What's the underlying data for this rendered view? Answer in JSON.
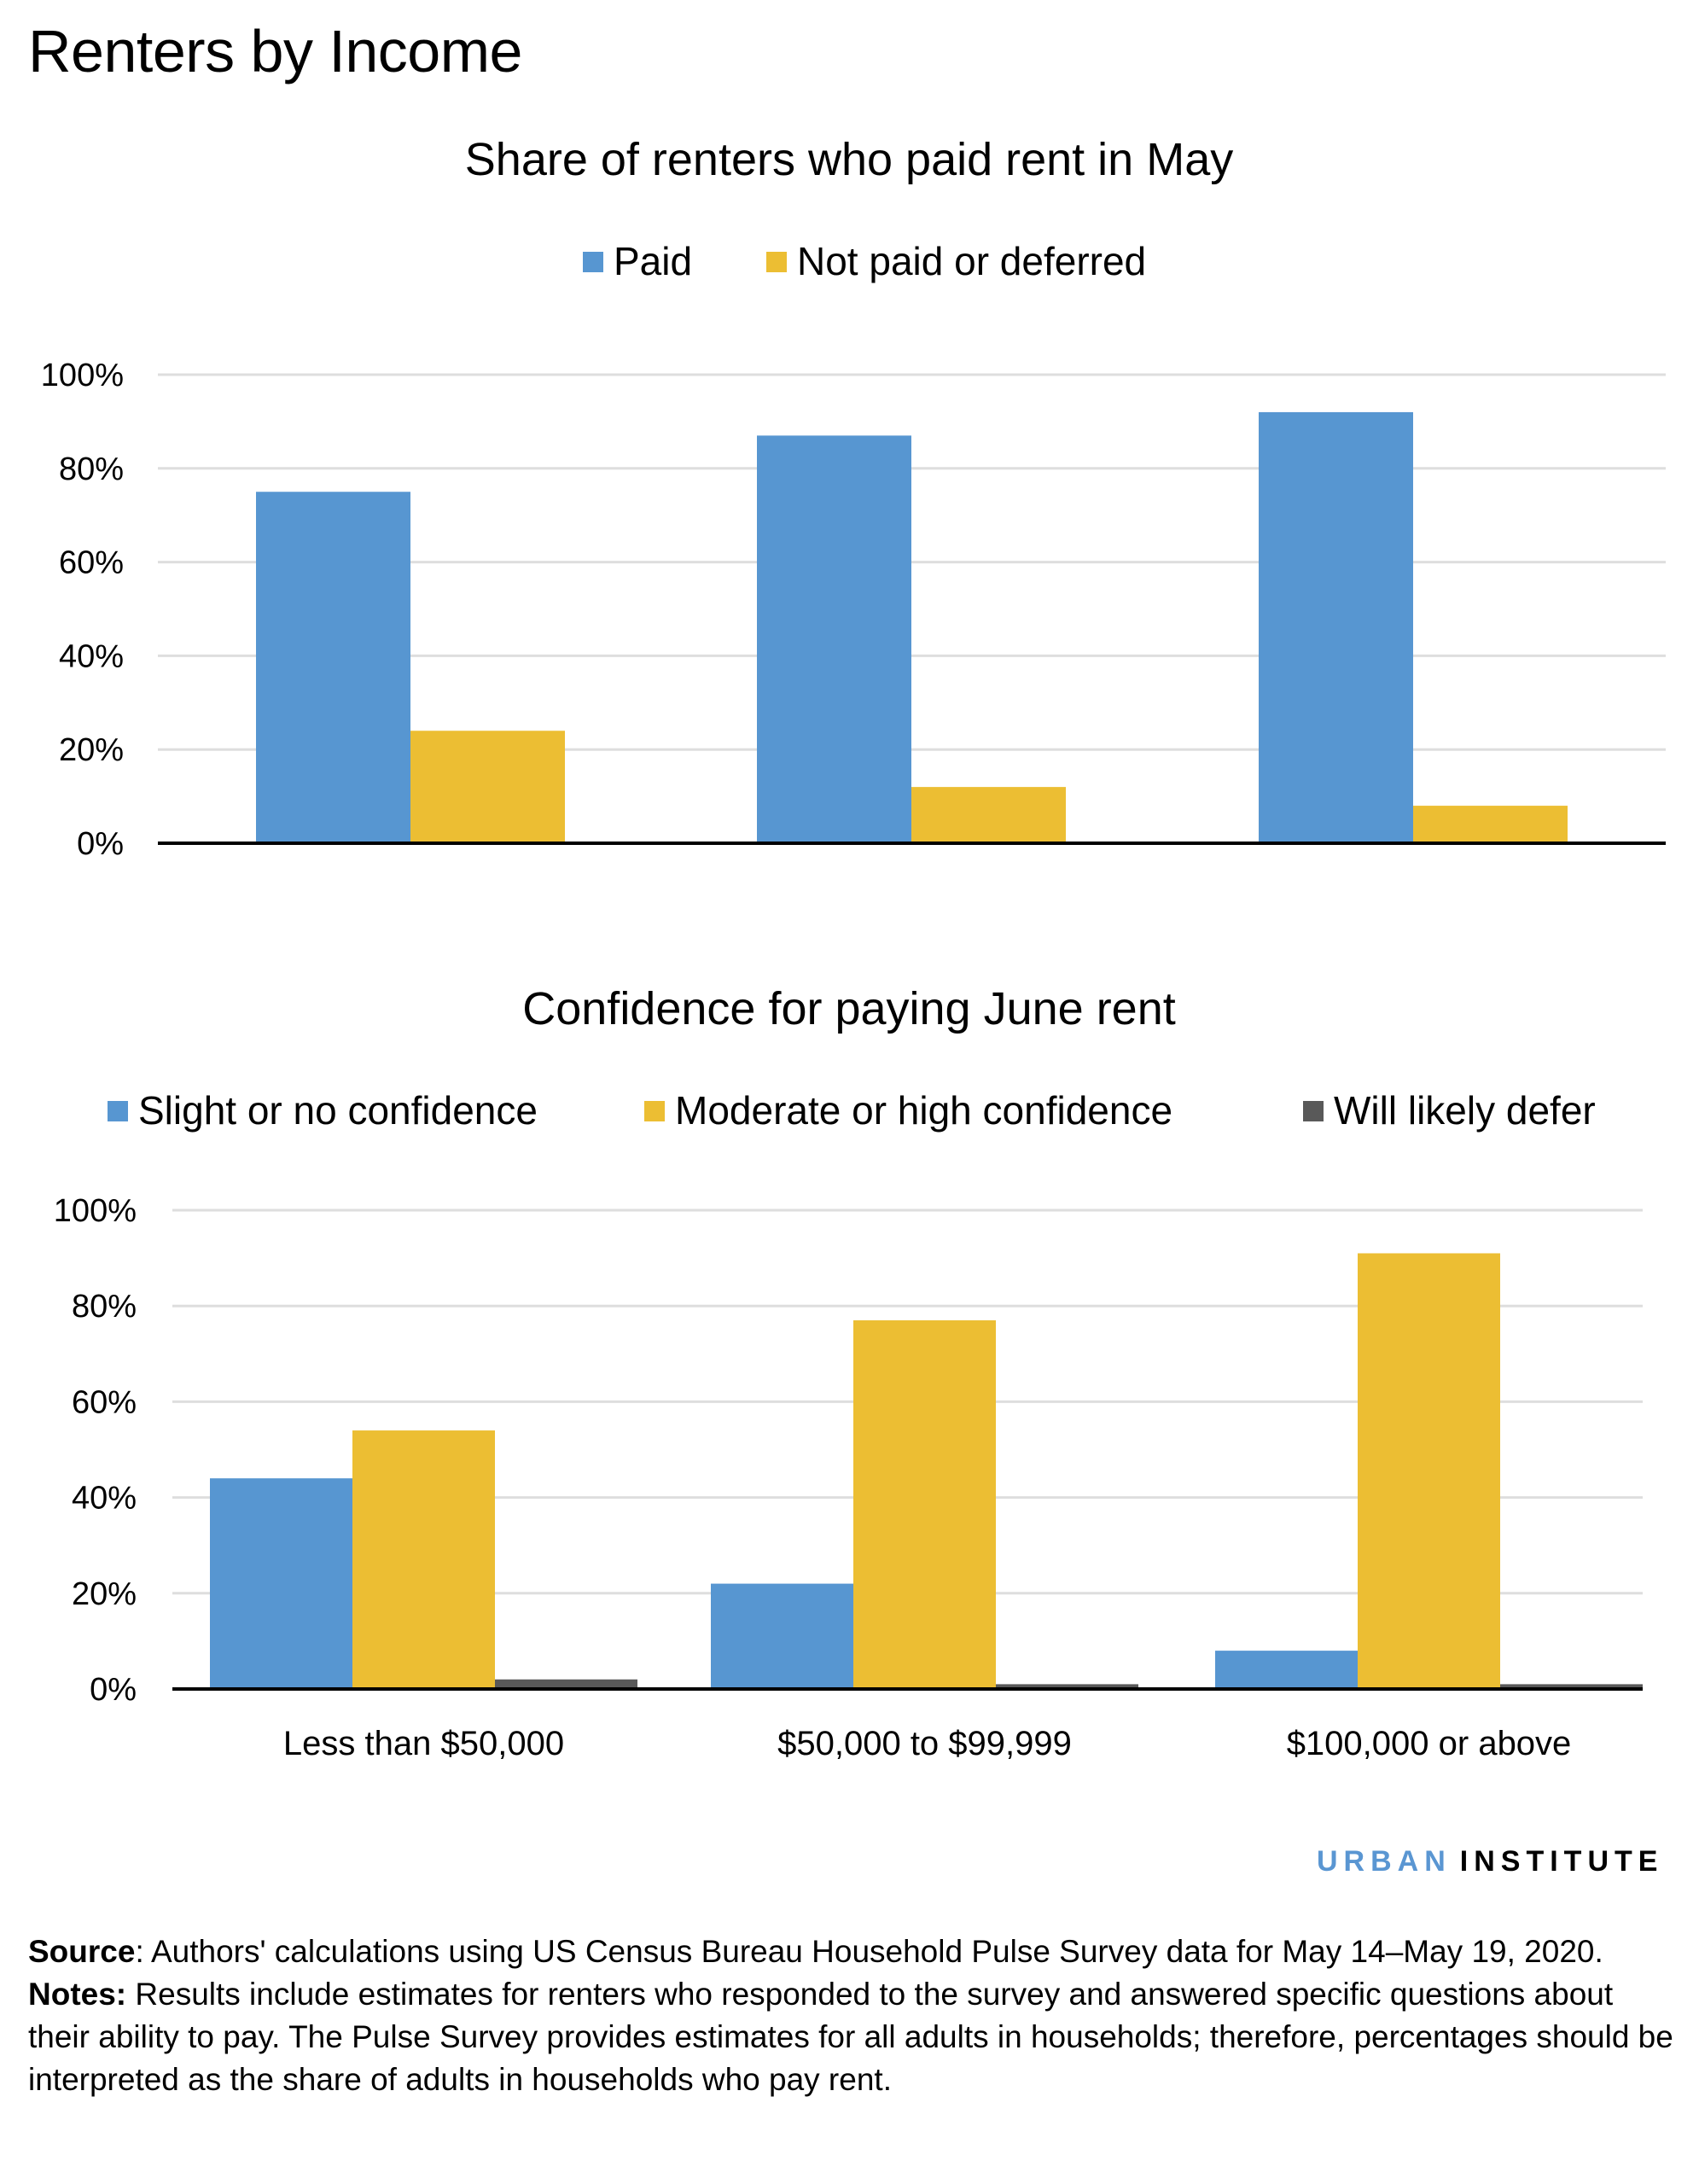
{
  "title": "Renters by Income",
  "colors": {
    "blue": "#5796d1",
    "yellow": "#ecbe33",
    "gray": "#595959",
    "gridline": "#dedede",
    "axis": "#000000"
  },
  "chart_data": [
    {
      "type": "bar",
      "title": "Share of renters who paid rent in May",
      "categories": [
        "Less than $50,000",
        "$50,000 to $99,999",
        "$100,000 or above"
      ],
      "show_category_labels": false,
      "series": [
        {
          "name": "Paid",
          "color": "#5796d1",
          "values": [
            75,
            87,
            92
          ]
        },
        {
          "name": "Not paid or deferred",
          "color": "#ecbe33",
          "values": [
            24,
            12,
            8
          ]
        }
      ],
      "ylim": [
        0,
        100
      ],
      "yticks": [
        "0%",
        "20%",
        "40%",
        "60%",
        "80%",
        "100%"
      ],
      "xlabel": "",
      "ylabel": "",
      "grid": true,
      "legend": "top-center"
    },
    {
      "type": "bar",
      "title": "Confidence for paying June rent",
      "categories": [
        "Less than $50,000",
        "$50,000 to $99,999",
        "$100,000 or above"
      ],
      "show_category_labels": true,
      "series": [
        {
          "name": "Slight or no confidence",
          "color": "#5796d1",
          "values": [
            44,
            22,
            8
          ]
        },
        {
          "name": "Moderate or high confidence",
          "color": "#ecbe33",
          "values": [
            54,
            77,
            91
          ]
        },
        {
          "name": "Will likely defer",
          "color": "#595959",
          "values": [
            2,
            1,
            1
          ]
        }
      ],
      "ylim": [
        0,
        100
      ],
      "yticks": [
        "0%",
        "20%",
        "40%",
        "60%",
        "80%",
        "100%"
      ],
      "xlabel": "",
      "ylabel": "",
      "grid": true,
      "legend": "top-center"
    }
  ],
  "brand": {
    "urban": "URBAN",
    "institute": "INSTITUTE"
  },
  "footer": {
    "source_label": "Source",
    "source_text": ": Authors' calculations using US Census Bureau Household Pulse Survey data for May 14–May 19, 2020.",
    "notes_label": "Notes:",
    "notes_text": " Results include estimates for renters who responded to the survey and answered specific questions about their ability to pay. The Pulse Survey provides estimates for all adults in households; therefore, percentages should be interpreted as the share of adults in households who pay rent."
  }
}
